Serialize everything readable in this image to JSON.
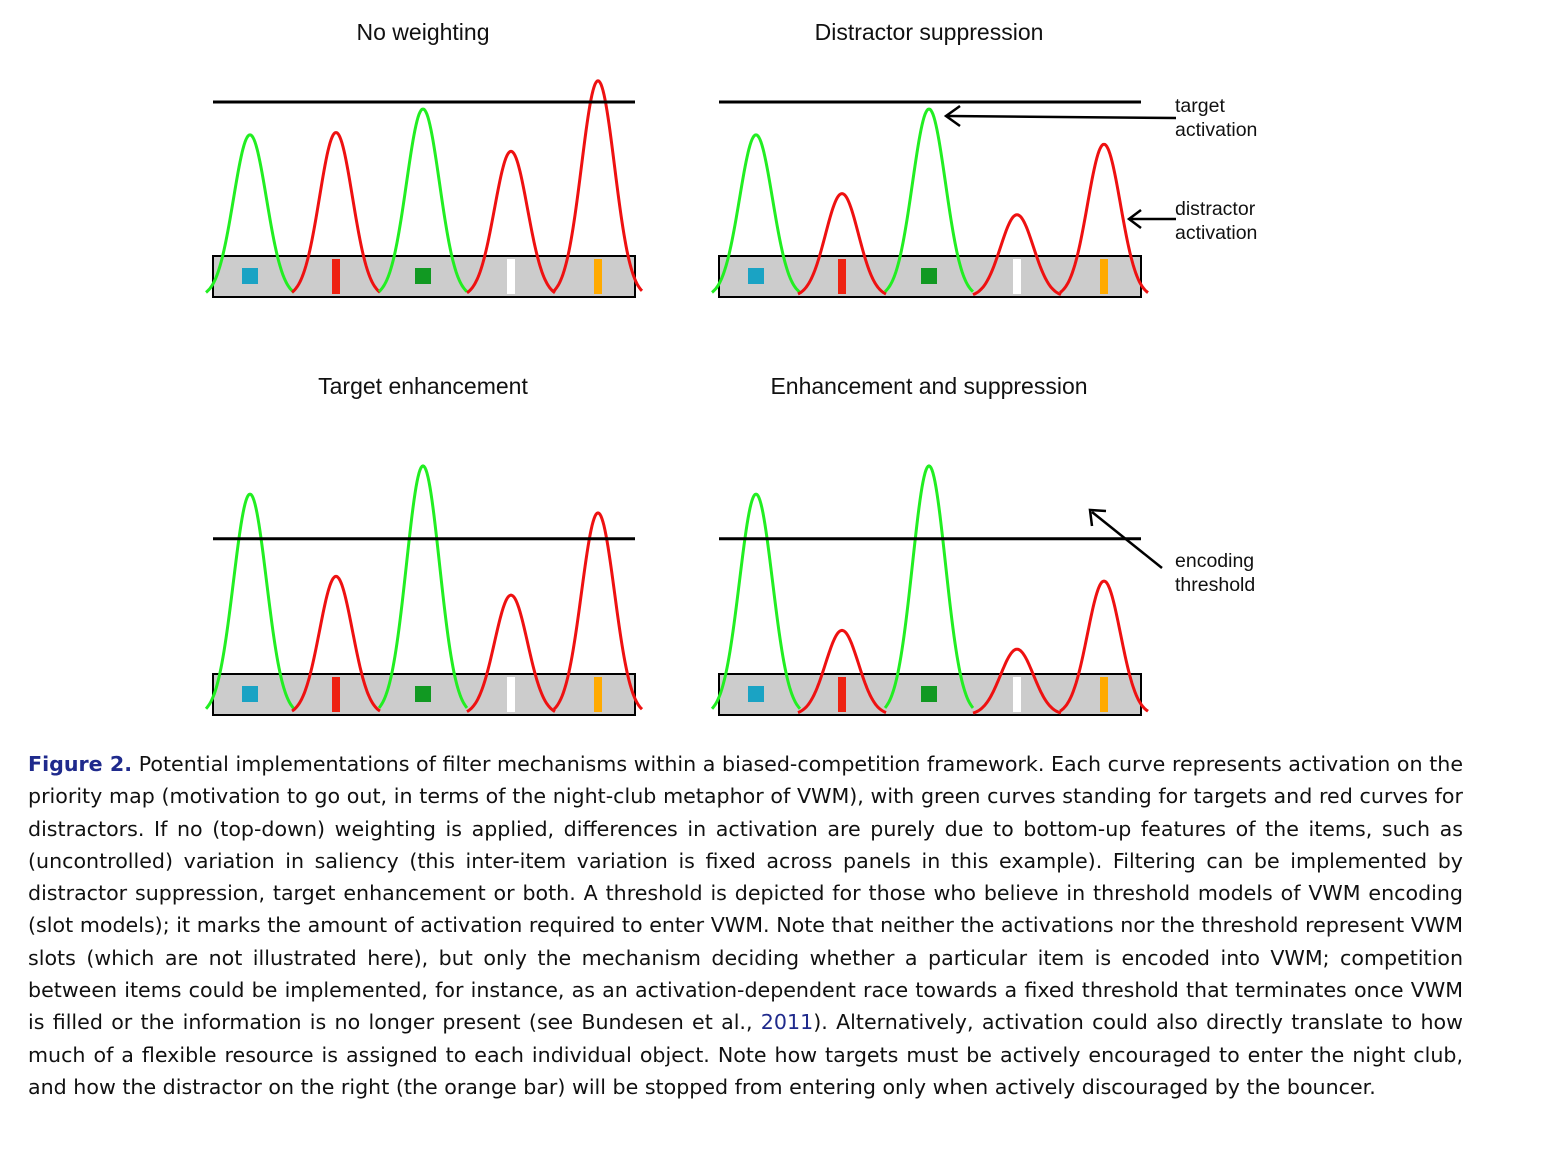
{
  "figure": {
    "colors": {
      "target_curve": "#22ee22",
      "distractor_curve": "#ee1111",
      "threshold_line": "#000000",
      "display_bar": "#cccccc"
    },
    "item_markers": [
      {
        "shape": "square",
        "color": "#1aa3c4"
      },
      {
        "shape": "bar",
        "color": "#ee2211"
      },
      {
        "shape": "square",
        "color": "#119922"
      },
      {
        "shape": "bar",
        "color": "#ffffff"
      },
      {
        "shape": "bar",
        "color": "#ffaa00"
      }
    ],
    "item_roles": [
      "target",
      "distractor",
      "target",
      "distractor",
      "distractor"
    ],
    "panels": [
      {
        "id": "no-weighting",
        "title": "No weighting",
        "activations": [
          0.69,
          0.7,
          0.8,
          0.62,
          0.92
        ],
        "threshold": 0.83
      },
      {
        "id": "distractor-suppression",
        "title": "Distractor suppression",
        "activations": [
          0.69,
          0.44,
          0.8,
          0.35,
          0.65
        ],
        "threshold": 0.83
      },
      {
        "id": "target-enhancement",
        "title": "Target enhancement",
        "activations": [
          0.94,
          0.59,
          1.06,
          0.51,
          0.86
        ],
        "threshold": 0.75
      },
      {
        "id": "enhancement-and-suppression",
        "title": "Enhancement and suppression",
        "activations": [
          0.94,
          0.36,
          1.06,
          0.28,
          0.57
        ],
        "threshold": 0.75
      }
    ],
    "annotations": {
      "target_activation": [
        "target",
        "activation"
      ],
      "distractor_activation": [
        "distractor",
        "activation"
      ],
      "encoding_threshold": [
        "encoding",
        "threshold"
      ]
    }
  },
  "caption": {
    "label": "Figure 2.",
    "text_before_link": " Potential implementations of filter mechanisms within a biased-competition framework. Each curve represents activation on the priority map (motivation to go out, in terms of the night-club metaphor of VWM), with green curves standing for targets and red curves for distractors. If no (top-down) weighting is applied, differences in activation are purely due to bottom-up features of the items, such as (uncontrolled) variation in saliency (this inter-item variation is fixed across panels in this example). Filtering can be implemented by distractor suppression, target enhancement or both. A threshold is depicted for those who believe in threshold models of VWM encoding (slot models); it marks the amount of activation required to enter VWM. Note that neither the activations nor the threshold represent VWM slots (which are not illustrated here), but only the mechanism deciding whether a particular item is encoded into VWM; competition between items could be implemented, for instance, as an activation-dependent race towards a fixed threshold that terminates once VWM is filled or the information is no longer present (see Bundesen et al., ",
    "link_text": "2011",
    "text_after_link": "). Alternatively, activation could also directly translate to how much of a flexible resource is assigned to each individual object. Note how targets must be actively encouraged to enter the night club, and how the distractor on the right (the orange bar) will be stopped from entering only when actively discouraged by the bouncer."
  }
}
